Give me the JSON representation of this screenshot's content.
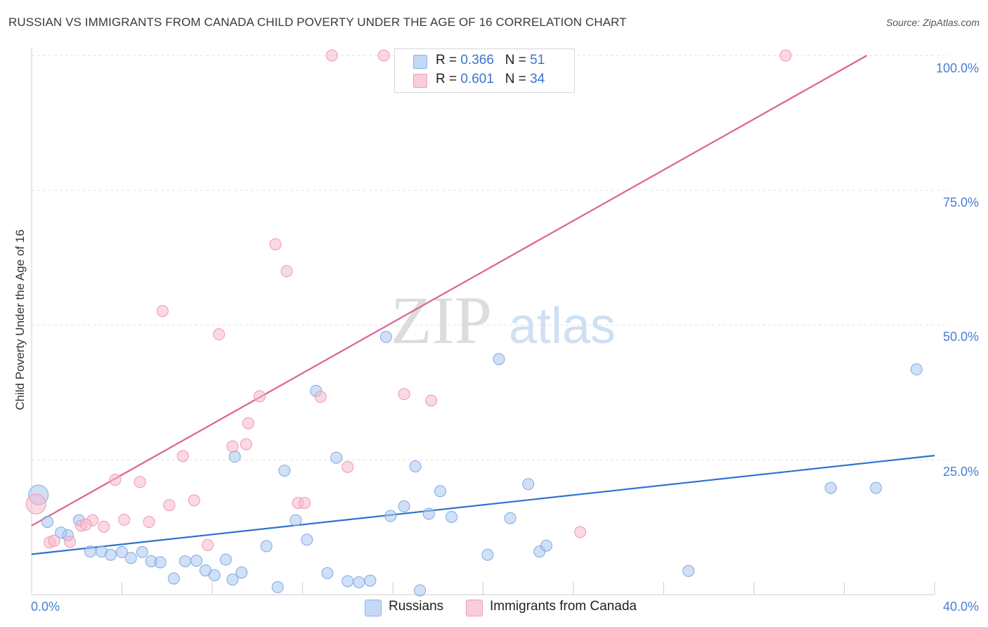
{
  "title": "RUSSIAN VS IMMIGRANTS FROM CANADA CHILD POVERTY UNDER THE AGE OF 16 CORRELATION CHART",
  "source": "Source: ZipAtlas.com",
  "watermark": {
    "zip": "ZIP",
    "atlas": "atlas"
  },
  "legend": {
    "russians": {
      "r_label": "R = ",
      "r_value": "0.366",
      "n_label": "N = ",
      "n_value": "51",
      "color": "#a9c6f0"
    },
    "canada": {
      "r_label": "R = ",
      "r_value": "0.601",
      "n_label": "N = ",
      "n_value": "34",
      "color": "#f5b9cb"
    }
  },
  "bottom_legend": {
    "russians": "Russians",
    "canada": "Immigrants from Canada"
  },
  "chart_data": {
    "type": "scatter",
    "title": "RUSSIAN VS IMMIGRANTS FROM CANADA CHILD POVERTY UNDER THE AGE OF 16 CORRELATION CHART",
    "xlabel": "",
    "ylabel": "Child Poverty Under the Age of 16",
    "xlim": [
      0,
      40
    ],
    "ylim": [
      0,
      100
    ],
    "x_tick_labels": [
      "0.0%",
      "40.0%"
    ],
    "y_tick_labels": [
      "25.0%",
      "50.0%",
      "75.0%",
      "100.0%"
    ],
    "y_ticks": [
      25,
      50,
      75,
      100
    ],
    "series": [
      {
        "name": "Russians",
        "color": "#a9c6f0",
        "stroke": "#7fa8e0",
        "trend_color": "#2f72d0",
        "trend": {
          "x": [
            0,
            40
          ],
          "y": [
            7.5,
            25.8
          ]
        },
        "points": [
          {
            "x": 0.3,
            "y": 18.5,
            "size": "large"
          },
          {
            "x": 0.7,
            "y": 13.5
          },
          {
            "x": 1.6,
            "y": 11.0
          },
          {
            "x": 2.1,
            "y": 13.8
          },
          {
            "x": 2.6,
            "y": 8.0
          },
          {
            "x": 3.1,
            "y": 8.0
          },
          {
            "x": 3.5,
            "y": 7.4
          },
          {
            "x": 4.0,
            "y": 7.9
          },
          {
            "x": 4.4,
            "y": 6.8
          },
          {
            "x": 4.9,
            "y": 7.9
          },
          {
            "x": 5.3,
            "y": 6.2
          },
          {
            "x": 5.7,
            "y": 6.0
          },
          {
            "x": 6.3,
            "y": 3.0
          },
          {
            "x": 6.8,
            "y": 6.2
          },
          {
            "x": 7.3,
            "y": 6.3
          },
          {
            "x": 7.7,
            "y": 4.5
          },
          {
            "x": 8.1,
            "y": 3.6
          },
          {
            "x": 8.6,
            "y": 6.5
          },
          {
            "x": 8.9,
            "y": 2.8
          },
          {
            "x": 9.3,
            "y": 4.1
          },
          {
            "x": 9.0,
            "y": 25.6
          },
          {
            "x": 10.4,
            "y": 9.0
          },
          {
            "x": 10.9,
            "y": 1.4
          },
          {
            "x": 11.2,
            "y": 23.0
          },
          {
            "x": 11.7,
            "y": 13.8
          },
          {
            "x": 12.2,
            "y": 10.2
          },
          {
            "x": 12.6,
            "y": 37.8
          },
          {
            "x": 13.1,
            "y": 4.0
          },
          {
            "x": 13.5,
            "y": 25.4
          },
          {
            "x": 14.0,
            "y": 2.5
          },
          {
            "x": 14.5,
            "y": 2.3
          },
          {
            "x": 15.0,
            "y": 2.6
          },
          {
            "x": 15.7,
            "y": 47.8
          },
          {
            "x": 15.9,
            "y": 14.6
          },
          {
            "x": 16.5,
            "y": 16.4
          },
          {
            "x": 17.2,
            "y": 0.8
          },
          {
            "x": 17.0,
            "y": 23.8
          },
          {
            "x": 17.6,
            "y": 15.0
          },
          {
            "x": 18.1,
            "y": 19.2
          },
          {
            "x": 18.6,
            "y": 14.4
          },
          {
            "x": 20.2,
            "y": 7.4
          },
          {
            "x": 20.7,
            "y": 43.7
          },
          {
            "x": 21.2,
            "y": 14.2
          },
          {
            "x": 22.0,
            "y": 20.5
          },
          {
            "x": 22.5,
            "y": 8.0
          },
          {
            "x": 22.8,
            "y": 9.1
          },
          {
            "x": 29.1,
            "y": 4.4
          },
          {
            "x": 35.4,
            "y": 19.8
          },
          {
            "x": 37.4,
            "y": 19.8
          },
          {
            "x": 39.2,
            "y": 41.8
          },
          {
            "x": 1.3,
            "y": 11.5
          }
        ]
      },
      {
        "name": "Immigrants from Canada",
        "color": "#f5b9cb",
        "stroke": "#ef97b3",
        "trend_color": "#e06090",
        "trend": {
          "x": [
            0,
            37.0
          ],
          "y": [
            12.8,
            100.0
          ]
        },
        "points": [
          {
            "x": 0.2,
            "y": 16.8,
            "size": "large"
          },
          {
            "x": 0.8,
            "y": 9.7
          },
          {
            "x": 1.7,
            "y": 9.8
          },
          {
            "x": 2.2,
            "y": 12.8
          },
          {
            "x": 2.7,
            "y": 13.8
          },
          {
            "x": 3.2,
            "y": 12.6
          },
          {
            "x": 3.7,
            "y": 21.3
          },
          {
            "x": 4.1,
            "y": 13.9
          },
          {
            "x": 4.8,
            "y": 20.9
          },
          {
            "x": 5.2,
            "y": 13.5
          },
          {
            "x": 5.8,
            "y": 52.6
          },
          {
            "x": 6.1,
            "y": 16.6
          },
          {
            "x": 6.7,
            "y": 25.7
          },
          {
            "x": 7.2,
            "y": 17.5
          },
          {
            "x": 7.8,
            "y": 9.2
          },
          {
            "x": 8.3,
            "y": 48.3
          },
          {
            "x": 8.9,
            "y": 27.5
          },
          {
            "x": 9.5,
            "y": 27.9
          },
          {
            "x": 9.6,
            "y": 31.8
          },
          {
            "x": 10.1,
            "y": 36.8
          },
          {
            "x": 10.8,
            "y": 65.0
          },
          {
            "x": 11.3,
            "y": 60.0
          },
          {
            "x": 11.8,
            "y": 17.0
          },
          {
            "x": 12.1,
            "y": 17.0
          },
          {
            "x": 12.8,
            "y": 36.7
          },
          {
            "x": 13.3,
            "y": 100.0
          },
          {
            "x": 14.0,
            "y": 23.7
          },
          {
            "x": 15.6,
            "y": 100.0
          },
          {
            "x": 16.5,
            "y": 37.2
          },
          {
            "x": 17.7,
            "y": 36.0
          },
          {
            "x": 24.3,
            "y": 11.6
          },
          {
            "x": 33.4,
            "y": 100.0
          },
          {
            "x": 1.0,
            "y": 10.0
          },
          {
            "x": 2.4,
            "y": 13.0
          }
        ]
      }
    ]
  }
}
